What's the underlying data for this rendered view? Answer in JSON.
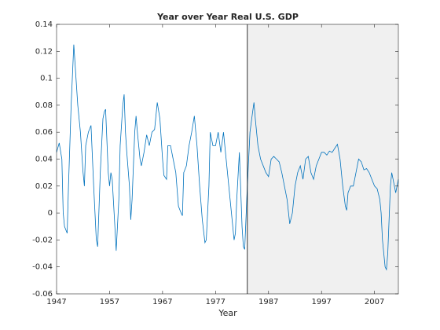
{
  "chart_data": {
    "type": "line",
    "title": "Year over Year Real U.S. GDP",
    "xlabel": "Year",
    "xlim": [
      1947,
      2011.5
    ],
    "ylim": [
      -0.06,
      0.14
    ],
    "xticks": [
      1947,
      1957,
      1967,
      1977,
      1987,
      1997,
      2007
    ],
    "yticks": [
      -0.06,
      -0.04,
      -0.02,
      0,
      0.02,
      0.04,
      0.06,
      0.08,
      0.1,
      0.12,
      0.14
    ],
    "shaded_from": 1983,
    "shade_color": "#f0f0f0",
    "series": [
      {
        "color": "#0072bd",
        "x": [
          1947,
          1947.5,
          1948,
          1948.25,
          1948.5,
          1949,
          1949.25,
          1949.75,
          1950.25,
          1950.5,
          1951,
          1951.5,
          1952,
          1952.25,
          1952.5,
          1953,
          1953.5,
          1954,
          1954.5,
          1954.75,
          1955.25,
          1955.75,
          1956,
          1956.25,
          1956.75,
          1957,
          1957.25,
          1957.5,
          1958,
          1958.25,
          1958.75,
          1959,
          1959.5,
          1959.75,
          1960,
          1960.25,
          1960.75,
          1961,
          1961.25,
          1961.75,
          1962,
          1962.25,
          1962.75,
          1963,
          1963.5,
          1964,
          1964.5,
          1965,
          1965.5,
          1966,
          1966.5,
          1967,
          1967.25,
          1967.75,
          1968,
          1968.5,
          1969,
          1969.5,
          1970,
          1970.5,
          1970.75,
          1971,
          1971.5,
          1972,
          1972.5,
          1973,
          1973.5,
          1974,
          1974.5,
          1975,
          1975.25,
          1975.75,
          1976,
          1976.5,
          1977,
          1977.5,
          1978,
          1978.5,
          1979,
          1979.5,
          1980,
          1980.5,
          1980.75,
          1981,
          1981.5,
          1982,
          1982.25,
          1982.5,
          1983,
          1983.5,
          1984,
          1984.25,
          1984.5,
          1985,
          1985.5,
          1986,
          1986.5,
          1987,
          1987.5,
          1988,
          1988.5,
          1989,
          1989.5,
          1990,
          1990.5,
          1991,
          1991.5,
          1992,
          1992.5,
          1993,
          1993.5,
          1994,
          1994.5,
          1995,
          1995.5,
          1996,
          1996.5,
          1997,
          1997.5,
          1998,
          1998.5,
          1999,
          1999.5,
          2000,
          2000.5,
          2001,
          2001.5,
          2001.75,
          2002,
          2002.5,
          2003,
          2003.5,
          2004,
          2004.5,
          2005,
          2005.5,
          2006,
          2006.5,
          2007,
          2007.5,
          2008,
          2008.25,
          2008.5,
          2009,
          2009.25,
          2009.5,
          2010,
          2010.25,
          2010.5,
          2011,
          2011.25,
          2011.5
        ],
        "values": [
          0.045,
          0.052,
          0.04,
          0.0,
          -0.01,
          -0.015,
          0.02,
          0.08,
          0.125,
          0.11,
          0.08,
          0.06,
          0.03,
          0.02,
          0.05,
          0.06,
          0.065,
          0.02,
          -0.02,
          -0.025,
          0.03,
          0.07,
          0.075,
          0.077,
          0.03,
          0.02,
          0.03,
          0.025,
          -0.01,
          -0.028,
          0.01,
          0.05,
          0.08,
          0.088,
          0.06,
          0.045,
          0.02,
          -0.005,
          0.01,
          0.06,
          0.072,
          0.06,
          0.04,
          0.035,
          0.045,
          0.058,
          0.05,
          0.06,
          0.062,
          0.082,
          0.07,
          0.04,
          0.028,
          0.025,
          0.05,
          0.05,
          0.04,
          0.03,
          0.005,
          0.0,
          -0.002,
          0.03,
          0.035,
          0.05,
          0.06,
          0.072,
          0.05,
          0.02,
          -0.005,
          -0.022,
          -0.02,
          0.02,
          0.06,
          0.05,
          0.05,
          0.06,
          0.045,
          0.06,
          0.04,
          0.02,
          0.0,
          -0.02,
          -0.015,
          0.01,
          0.045,
          -0.01,
          -0.025,
          -0.027,
          0.02,
          0.06,
          0.075,
          0.082,
          0.07,
          0.05,
          0.04,
          0.035,
          0.03,
          0.027,
          0.04,
          0.042,
          0.04,
          0.038,
          0.03,
          0.02,
          0.01,
          -0.008,
          0.0,
          0.02,
          0.03,
          0.035,
          0.025,
          0.04,
          0.042,
          0.03,
          0.025,
          0.035,
          0.04,
          0.045,
          0.045,
          0.043,
          0.046,
          0.045,
          0.048,
          0.051,
          0.04,
          0.02,
          0.005,
          0.002,
          0.015,
          0.02,
          0.02,
          0.03,
          0.04,
          0.038,
          0.032,
          0.033,
          0.03,
          0.025,
          0.02,
          0.018,
          0.01,
          0.0,
          -0.02,
          -0.04,
          -0.042,
          -0.03,
          0.02,
          0.03,
          0.025,
          0.015,
          0.02,
          0.025
        ]
      }
    ]
  }
}
